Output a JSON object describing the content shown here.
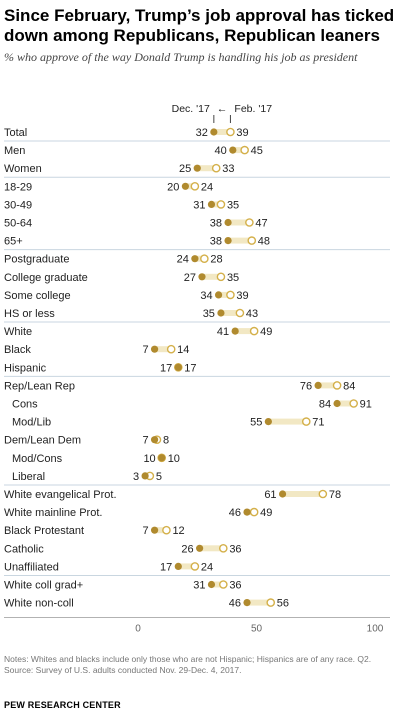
{
  "title": "Since February, Trump’s job approval has ticked down among Republicans, Republican leaners",
  "subtitle": "% who approve of the way Donald Trump is handling his job as president",
  "legend": {
    "dec_label": "Dec. '17",
    "arrow": "←",
    "feb_label": "Feb. '17"
  },
  "colors": {
    "dec_fill": "#b08a2e",
    "feb_stroke": "#d4b04a",
    "bar": "#f2e8c4",
    "separator": "#c9d6e0"
  },
  "chart_data": {
    "type": "dot",
    "xlim": [
      0,
      100
    ],
    "ticks": [
      0,
      50,
      100
    ],
    "series": [
      {
        "name": "Dec. '17",
        "key": "dec"
      },
      {
        "name": "Feb. '17",
        "key": "feb"
      }
    ],
    "rows": [
      {
        "label": "Total",
        "dec": 32,
        "feb": 39,
        "indent": false
      },
      {
        "label": "Men",
        "dec": 40,
        "feb": 45,
        "indent": false
      },
      {
        "label": "Women",
        "dec": 25,
        "feb": 33,
        "indent": false
      },
      {
        "label": "18-29",
        "dec": 20,
        "feb": 24,
        "indent": false
      },
      {
        "label": "30-49",
        "dec": 31,
        "feb": 35,
        "indent": false
      },
      {
        "label": "50-64",
        "dec": 38,
        "feb": 47,
        "indent": false
      },
      {
        "label": "65+",
        "dec": 38,
        "feb": 48,
        "indent": false
      },
      {
        "label": "Postgraduate",
        "dec": 24,
        "feb": 28,
        "indent": false
      },
      {
        "label": "College graduate",
        "dec": 27,
        "feb": 35,
        "indent": false
      },
      {
        "label": "Some college",
        "dec": 34,
        "feb": 39,
        "indent": false
      },
      {
        "label": "HS or less",
        "dec": 35,
        "feb": 43,
        "indent": false
      },
      {
        "label": "White",
        "dec": 41,
        "feb": 49,
        "indent": false
      },
      {
        "label": "Black",
        "dec": 7,
        "feb": 14,
        "indent": false
      },
      {
        "label": "Hispanic",
        "dec": 17,
        "feb": 17,
        "indent": false
      },
      {
        "label": "Rep/Lean Rep",
        "dec": 76,
        "feb": 84,
        "indent": false
      },
      {
        "label": "Cons",
        "dec": 84,
        "feb": 91,
        "indent": true
      },
      {
        "label": "Mod/Lib",
        "dec": 55,
        "feb": 71,
        "indent": true
      },
      {
        "label": "Dem/Lean Dem",
        "dec": 7,
        "feb": 8,
        "indent": false
      },
      {
        "label": "Mod/Cons",
        "dec": 10,
        "feb": 10,
        "indent": true
      },
      {
        "label": "Liberal",
        "dec": 3,
        "feb": 5,
        "indent": true
      },
      {
        "label": "White evangelical Prot.",
        "dec": 61,
        "feb": 78,
        "indent": false
      },
      {
        "label": "White mainline Prot.",
        "dec": 46,
        "feb": 49,
        "indent": false
      },
      {
        "label": "Black Protestant",
        "dec": 7,
        "feb": 12,
        "indent": false
      },
      {
        "label": "Catholic",
        "dec": 26,
        "feb": 36,
        "indent": false
      },
      {
        "label": "Unaffiliated",
        "dec": 17,
        "feb": 24,
        "indent": false
      },
      {
        "label": "White coll grad+",
        "dec": 31,
        "feb": 36,
        "indent": false
      },
      {
        "label": "White non-coll",
        "dec": 46,
        "feb": 56,
        "indent": false
      }
    ],
    "groups_end_after": [
      0,
      2,
      6,
      10,
      13,
      19,
      24
    ]
  },
  "notes": "Notes: Whites and blacks include only those who are not Hispanic; Hispanics are of any race. Q2.",
  "source": "Source: Survey of U.S. adults conducted Nov. 29-Dec. 4, 2017.",
  "brand": "PEW RESEARCH CENTER"
}
